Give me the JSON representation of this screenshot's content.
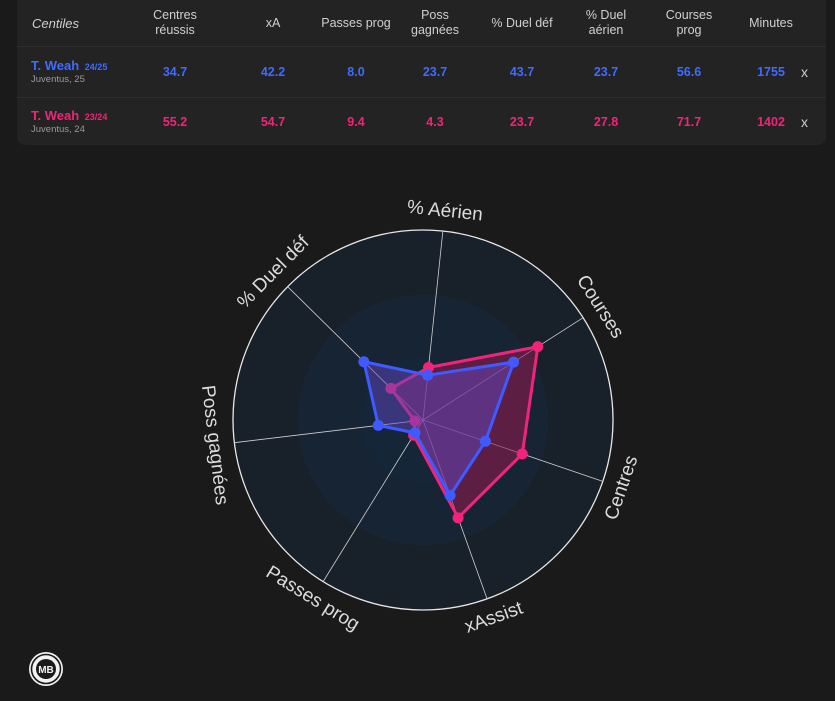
{
  "table": {
    "first_header": "Centiles",
    "columns": [
      [
        "Centres",
        "réussis"
      ],
      [
        "xA"
      ],
      [
        "Passes prog"
      ],
      [
        "Poss",
        "gagnées"
      ],
      [
        "% Duel déf"
      ],
      [
        "% Duel",
        "aérien"
      ],
      [
        "Courses",
        "prog"
      ],
      [
        "Minutes"
      ]
    ],
    "rows": [
      {
        "name": "T. Weah",
        "season": "24/25",
        "club": "Juventus, 25",
        "values": [
          "34.7",
          "42.2",
          "8.0",
          "23.7",
          "43.7",
          "23.7",
          "56.6",
          "1755"
        ],
        "remove_label": "x"
      },
      {
        "name": "T. Weah",
        "season": "23/24",
        "club": "Juventus, 24",
        "values": [
          "55.2",
          "54.7",
          "9.4",
          "4.3",
          "23.7",
          "27.8",
          "71.7",
          "1402"
        ],
        "remove_label": "x"
      }
    ]
  },
  "colors": {
    "series_2024_25": "#3f5bff",
    "series_2023_24": "#f0247a",
    "background": "#1a1a1a",
    "panel": "#232323"
  },
  "chart_data": {
    "type": "radar",
    "axes": [
      "% Aérien",
      "Courses",
      "Centres",
      "xAssist",
      "Passes prog",
      "Poss gagnées",
      "% Duel déf"
    ],
    "range": [
      0,
      100
    ],
    "grid": true,
    "series": [
      {
        "name": "T. Weah 23/24",
        "values": [
          27.8,
          71.7,
          55.2,
          54.7,
          9.4,
          4.3,
          23.7
        ]
      },
      {
        "name": "T. Weah 24/25",
        "values": [
          23.7,
          56.6,
          34.7,
          42.2,
          8.0,
          23.7,
          43.7
        ]
      }
    ]
  },
  "logo": {
    "text": "MB"
  }
}
